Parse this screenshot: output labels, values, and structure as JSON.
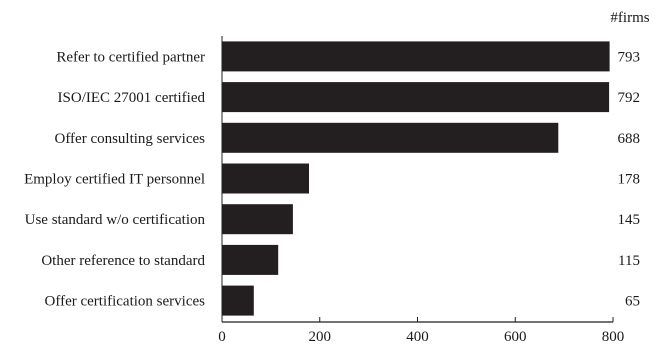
{
  "chart_data": {
    "type": "bar",
    "orientation": "horizontal",
    "title": "",
    "xlabel": "",
    "ylabel": "",
    "value_header": "#firms",
    "categories": [
      "Refer to certified partner",
      "ISO/IEC 27001 certified",
      "Offer consulting services",
      "Employ certified IT personnel",
      "Use standard w/o certification",
      "Other reference to standard",
      "Offer certification services"
    ],
    "values": [
      793,
      792,
      688,
      178,
      145,
      115,
      65
    ],
    "xlim": [
      0,
      800
    ],
    "xticks": [
      0,
      200,
      400,
      600,
      800
    ],
    "grid": false,
    "legend": "none",
    "bar_color": "#231f20",
    "axis_color": "#231f20"
  }
}
